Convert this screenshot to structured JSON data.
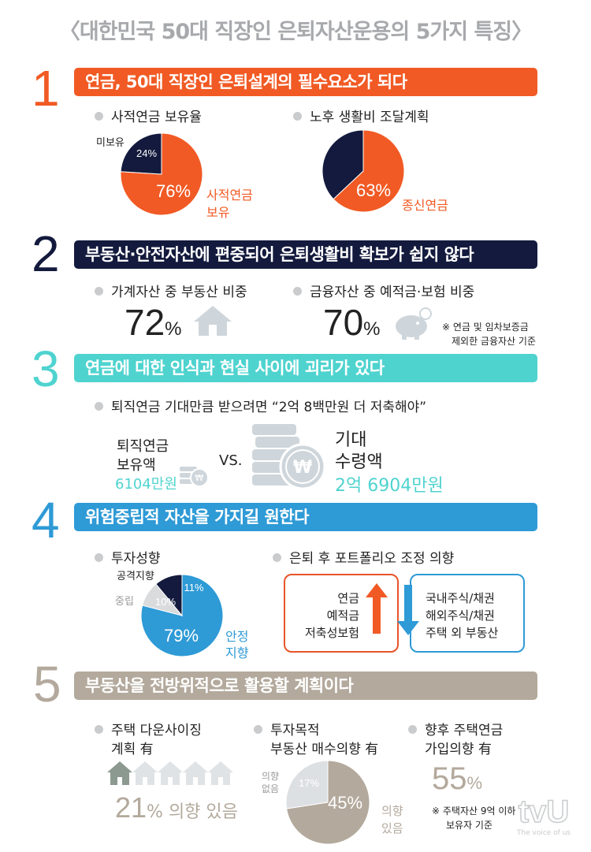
{
  "title": "〈대한민국 50대 직장인 은퇴자산운용의 5가지 특징〉",
  "colors": {
    "orange": "#f15a24",
    "navy": "#131a3d",
    "teal": "#4fd3cf",
    "blue": "#2e9ad6",
    "taupe": "#b3a99c",
    "grey": "#c9cbcd"
  },
  "s1": {
    "num": "1",
    "banner": "연금, 50대 직장인 은퇴설계의 필수요소가 되다",
    "b1": "사적연금 보유율",
    "b2": "노후 생활비 조달계획",
    "p1_small_label": "미보유",
    "p1_big_label_l1": "사적연금",
    "p1_big_label_l2": "보유",
    "p2_label": "종신연금"
  },
  "s2": {
    "num": "2",
    "banner": "부동산·안전자산에 편중되어 은퇴생활비 확보가 쉽지 않다",
    "b1": "가계자산 중 부동산 비중",
    "b2": "금융자산 중 예적금·보험 비중",
    "v1": "72",
    "v2": "70",
    "unit": "%",
    "icon1": "house-icon",
    "icon2": "piggy-bank-icon",
    "note_l1": "※ 연금 및 임차보증금",
    "note_l2": "제외한 금융자산 기준"
  },
  "s3": {
    "num": "3",
    "banner": "연금에 대한 인식과 현실 사이에 괴리가 있다",
    "b1": "퇴직연금 기대만큼 받으려면 “2억 8백만원 더 저축해야”",
    "left_l1": "퇴직연금",
    "left_l2": "보유액",
    "left_value": "6104만원",
    "vs": "VS.",
    "right_l1": "기대",
    "right_l2": "수령액",
    "right_value": "2억 6904만원",
    "coin_symbol": "₩",
    "icon": "coin-stack-icon"
  },
  "s4": {
    "num": "4",
    "banner": "위험중립적 자산을 가지길 원한다",
    "b1": "투자성향",
    "b2": "은퇴 후 포트폴리오 조정 의향",
    "label_aggressive": "공격지향",
    "label_neutral": "중립",
    "label_stable_l1": "안정",
    "label_stable_l2": "지향",
    "decrease": [
      "연금",
      "예적금",
      "저축성보험"
    ],
    "increase": [
      "국내주식/채권",
      "해외주식/채권",
      "주택 외 부동산"
    ],
    "icon_up": "arrow-up-icon",
    "icon_down": "arrow-down-icon"
  },
  "s5": {
    "num": "5",
    "banner": "부동산을 전방위적으로 활용할 계획이다",
    "b1_l1": "주택 다운사이징",
    "b1_l2": "계획 有",
    "b2_l1": "투자목적",
    "b2_l2": "부동산 매수의향 有",
    "b3_l1": "향후 주택연금",
    "b3_l2": "가입의향 有",
    "v1": "21",
    "v1_suffix": "% 의향 있음",
    "pie_no_l1": "의향",
    "pie_no_l2": "없음",
    "pie_yes_l1": "의향",
    "pie_yes_l2": "있음",
    "v3": "55",
    "unit": "%",
    "note_l1": "※ 주택자산 9억 이하",
    "note_l2": "보유자 기준",
    "houses_total": 5,
    "houses_highlighted": 1
  },
  "watermark": {
    "logo": "tvU",
    "tagline": "The voice of us"
  },
  "chart_data": [
    {
      "type": "pie",
      "title": "사적연금 보유율",
      "categories": [
        "사적연금 보유",
        "미보유"
      ],
      "values": [
        76,
        24
      ],
      "labels": [
        "76%",
        "24%"
      ]
    },
    {
      "type": "pie",
      "title": "노후 생활비 조달계획",
      "categories": [
        "종신연금",
        ""
      ],
      "values": [
        63,
        37
      ],
      "labels": [
        "63%"
      ]
    },
    {
      "type": "pie",
      "title": "투자성향",
      "categories": [
        "안정지향",
        "중립",
        "공격지향"
      ],
      "values": [
        79,
        10,
        11
      ],
      "labels": [
        "79%",
        "10%",
        "11%"
      ]
    },
    {
      "type": "pie",
      "title": "투자목적 부동산 매수의향 有",
      "categories": [
        "의향 있음",
        "의향 없음"
      ],
      "values": [
        45,
        17
      ],
      "labels": [
        "45%",
        "17%"
      ]
    }
  ]
}
